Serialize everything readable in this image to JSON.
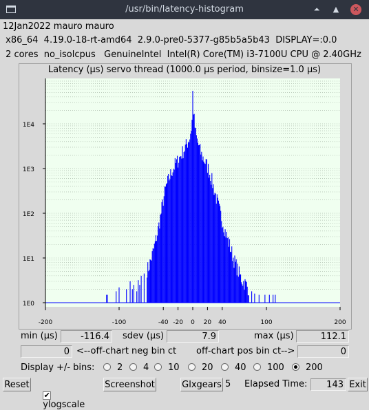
{
  "window": {
    "title": "/usr/bin/latency-histogram",
    "minimize_glyph": "⏶",
    "maximize_glyph": "▲",
    "close_glyph": "✕"
  },
  "info": {
    "line1": "12Jan2022 mauro mauro",
    "line2": " x86_64  4.19.0-18-rt-amd64  2.9.0-pre0-5377-g85b5a5b43  DISPLAY=:0.0",
    "line3": " 2 cores  no_isolcpus   GenuineIntel  Intel(R) Core(TM) i3-7100U CPU @ 2.40GHz"
  },
  "chart_data": {
    "type": "bar",
    "title": "Latency (µs) servo thread (1000.0 µs period, binsize=1.0 µs)",
    "ylog": true,
    "ylim": [
      1,
      100000
    ],
    "xlim": [
      -200,
      200
    ],
    "y_ticks": [
      "1E0",
      "1E1",
      "1E2",
      "1E3",
      "1E4"
    ],
    "x_ticks": [
      -200,
      -100,
      -40,
      -20,
      0,
      20,
      40,
      100,
      200
    ],
    "grid": "horizontal dotted",
    "bar_color": "#0000ff",
    "background": "#f0fff0",
    "profile": [
      [
        -117,
        1.5
      ],
      [
        -116,
        1.5
      ],
      [
        -104,
        1.8
      ],
      [
        -100,
        2.2
      ],
      [
        -90,
        2.0
      ],
      [
        -85,
        3.0
      ],
      [
        -82,
        2.0
      ],
      [
        -80,
        2.5
      ],
      [
        -76,
        1.8
      ],
      [
        -74,
        3.2
      ],
      [
        -72,
        2.5
      ],
      [
        -70,
        4.0
      ],
      [
        -66,
        4.5
      ],
      [
        -60,
        6
      ],
      [
        -56,
        10
      ],
      [
        -52,
        18
      ],
      [
        -48,
        35
      ],
      [
        -44,
        80
      ],
      [
        -40,
        200
      ],
      [
        -36,
        400
      ],
      [
        -32,
        600
      ],
      [
        -28,
        900
      ],
      [
        -24,
        1200
      ],
      [
        -20,
        1500
      ],
      [
        -16,
        2000
      ],
      [
        -12,
        2600
      ],
      [
        -10,
        3000
      ],
      [
        -8,
        3500
      ],
      [
        -6,
        4200
      ],
      [
        -4,
        5000
      ],
      [
        -2,
        8000
      ],
      [
        -1,
        12000
      ],
      [
        0,
        50000
      ],
      [
        1,
        20000
      ],
      [
        2,
        12000
      ],
      [
        4,
        6000
      ],
      [
        6,
        4200
      ],
      [
        8,
        3300
      ],
      [
        10,
        2500
      ],
      [
        12,
        2000
      ],
      [
        16,
        1500
      ],
      [
        20,
        1100
      ],
      [
        24,
        700
      ],
      [
        28,
        400
      ],
      [
        32,
        220
      ],
      [
        36,
        120
      ],
      [
        40,
        70
      ],
      [
        44,
        40
      ],
      [
        48,
        25
      ],
      [
        52,
        15
      ],
      [
        56,
        9
      ],
      [
        60,
        6
      ],
      [
        64,
        4
      ],
      [
        68,
        3
      ],
      [
        72,
        2.6
      ],
      [
        76,
        2
      ],
      [
        80,
        1.8
      ],
      [
        84,
        1.6
      ],
      [
        90,
        1.5
      ],
      [
        98,
        1.5
      ],
      [
        104,
        1.5
      ],
      [
        109,
        1.5
      ],
      [
        112,
        1.5
      ]
    ]
  },
  "stats": {
    "min_label": "min (µs)",
    "min_value": "-116.4",
    "sdev_label": "sdev (µs)",
    "sdev_value": "7.9",
    "max_label": "max (µs)",
    "max_value": "112.1",
    "neg_value": "0",
    "neg_label": "<--off-chart neg bin ct",
    "pos_label": "off-chart pos bin ct-->",
    "pos_value": "0"
  },
  "bins": {
    "label": "Display +/- bins:",
    "options": [
      "2",
      "4",
      "10",
      "20",
      "40",
      "100",
      "200"
    ],
    "selected": "200"
  },
  "bottom": {
    "reset": "Reset",
    "ylogscale": "ylogscale",
    "ylog_checked": "✔",
    "screenshot": "Screenshot",
    "glxgears": "Glxgears",
    "glx_count": "5",
    "elapsed_label": "Elapsed Time:",
    "elapsed_value": "143",
    "exit": "Exit"
  }
}
